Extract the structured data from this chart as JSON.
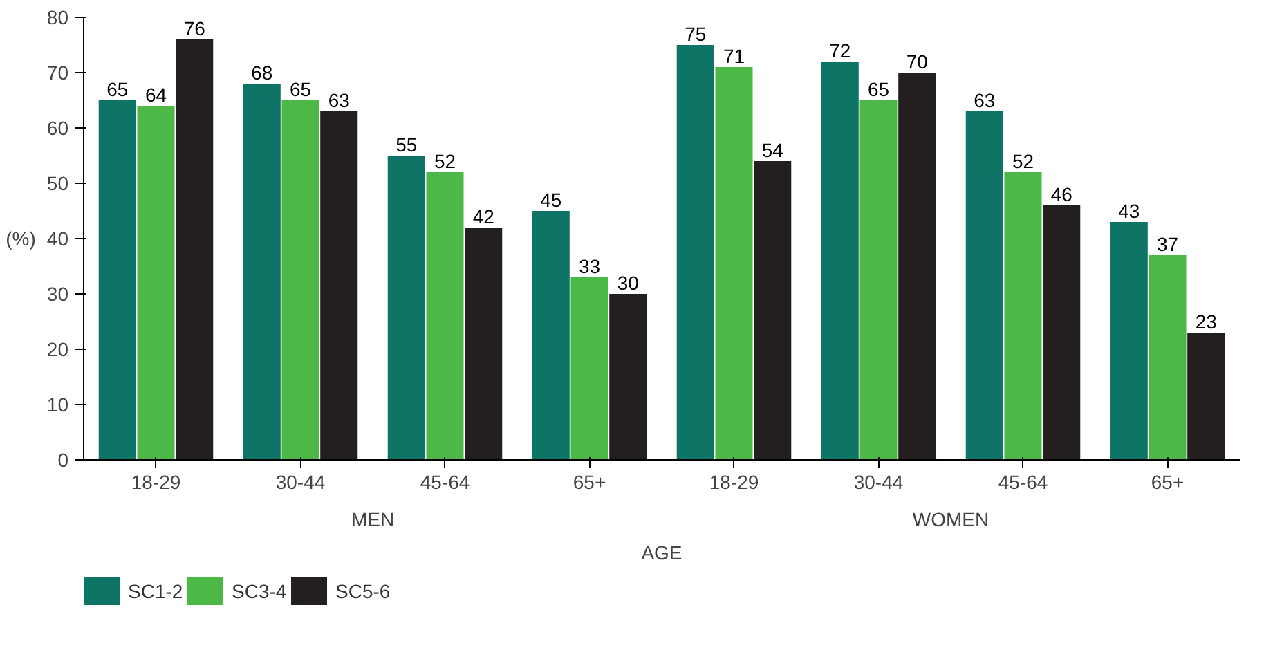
{
  "chart_data": {
    "type": "bar",
    "xlabel": "AGE",
    "ylabel": "(%)",
    "categories": [
      "18-29",
      "30-44",
      "45-64",
      "65+",
      "18-29",
      "30-44",
      "45-64",
      "65+"
    ],
    "series": [
      {
        "name": "SC1-2",
        "color": "#0e7465",
        "values": [
          65,
          68,
          55,
          45,
          75,
          72,
          63,
          43
        ]
      },
      {
        "name": "SC3-4",
        "color": "#4cb847",
        "values": [
          64,
          65,
          52,
          33,
          71,
          65,
          52,
          37
        ]
      },
      {
        "name": "SC5-6",
        "color": "#231f20",
        "values": [
          76,
          63,
          42,
          30,
          54,
          70,
          46,
          23
        ]
      }
    ],
    "annotations": [
      "MEN",
      "WOMEN"
    ],
    "ylim": [
      0,
      80
    ],
    "yticks": [
      0,
      10,
      20,
      30,
      40,
      50,
      60,
      70,
      80
    ],
    "data_labels": true,
    "grid": false,
    "legend": "bottom left"
  }
}
